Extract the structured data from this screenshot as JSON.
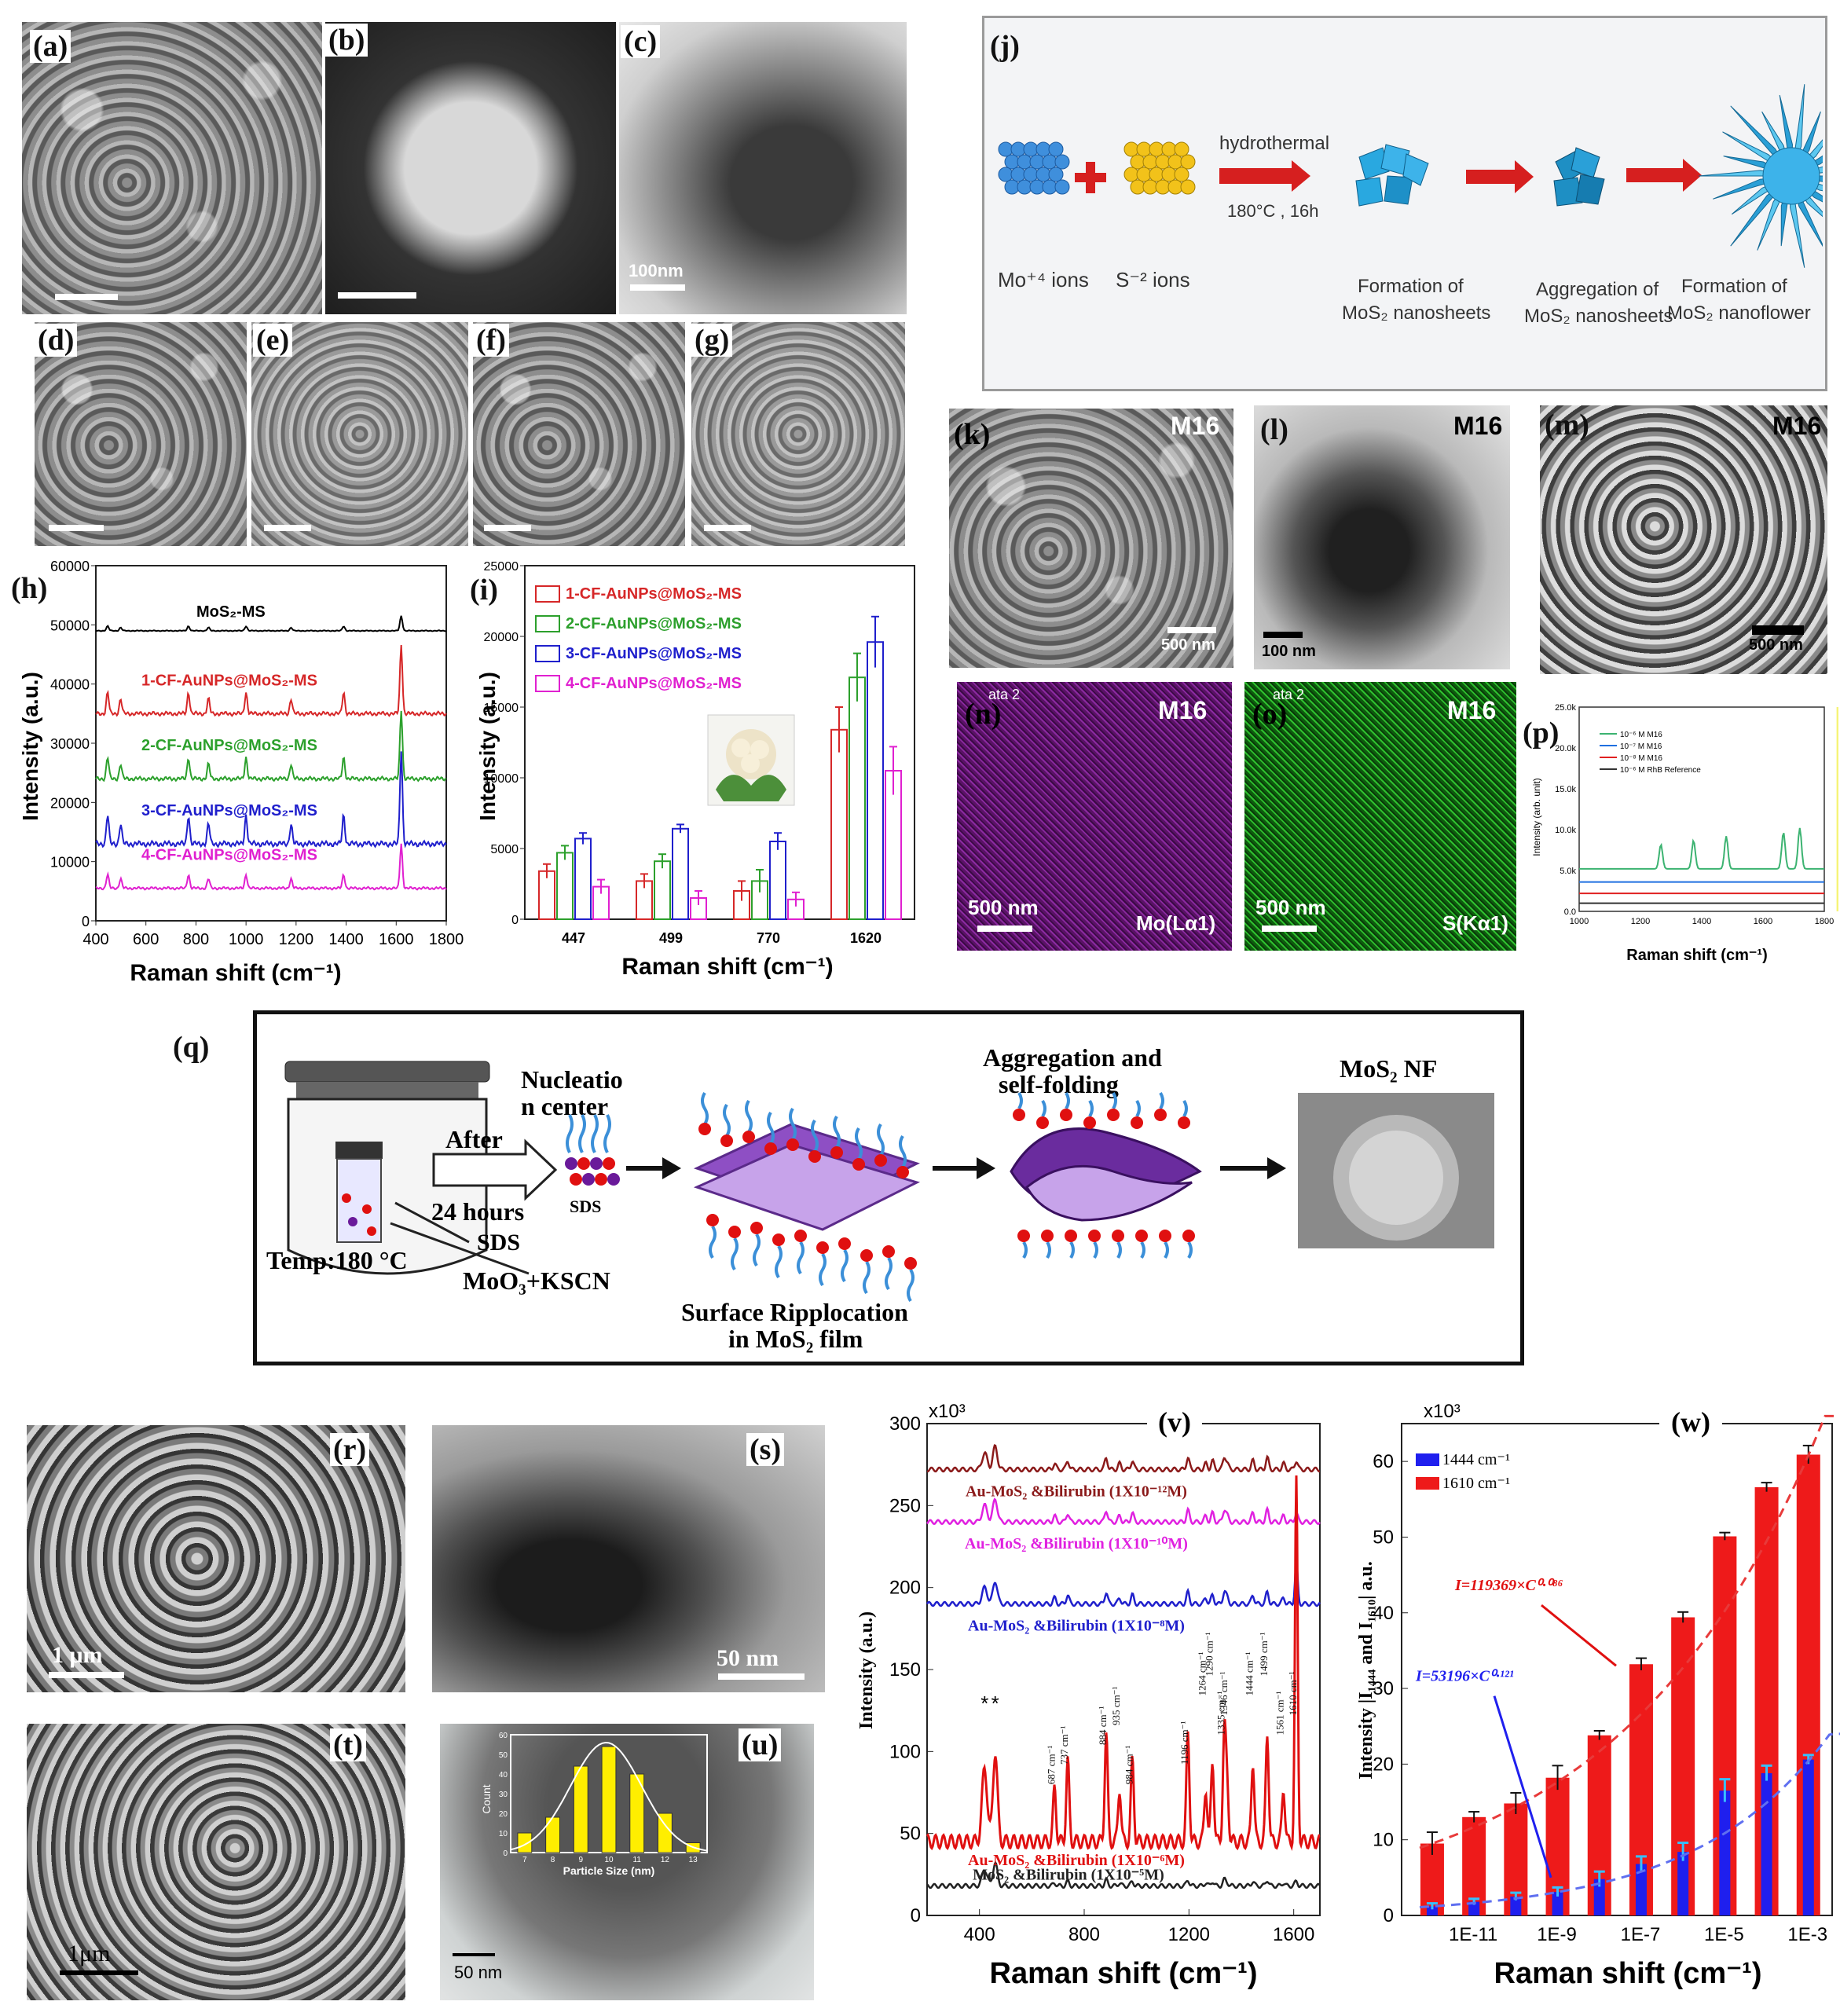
{
  "panel_labels": {
    "a": "(a)",
    "b": "(b)",
    "c": "(c)",
    "d": "(d)",
    "e": "(e)",
    "f": "(f)",
    "g": "(g)",
    "h": "(h)",
    "i": "(i)",
    "j": "(j)",
    "k": "(k)",
    "l": "(l)",
    "m": "(m)",
    "n": "(n)",
    "o": "(o)",
    "p": "(p)",
    "q": "(q)",
    "r": "(r)",
    "s": "(s)",
    "t": "(t)",
    "u": "(u)",
    "v": "(v)",
    "w": "(w)"
  },
  "micrographs": {
    "c_scale": "100nm",
    "k_tag": "M16",
    "k_scale": "500 nm",
    "l_tag": "M16",
    "l_scale": "100 nm",
    "m_tag": "M16",
    "m_scale": "500 nm",
    "n_tag": "M16",
    "n_scale": "500 nm",
    "n_element": "Mo(Lα1)",
    "n_corner": "ata 2",
    "o_tag": "M16",
    "o_scale": "500 nm",
    "o_element": "S(Kα1)",
    "o_corner": "ata 2",
    "r_scale": "1 μm",
    "s_scale": "50 nm",
    "t_scale": "1μm",
    "u_scale": "50 nm",
    "colors": {
      "n_map": "#7a1f8c",
      "o_map": "#1f8f1f"
    }
  },
  "scheme_j": {
    "hydrothermal": "hydrothermal",
    "conditions": "180°C , 16h",
    "mo_ions": "Mo⁺⁴ ions",
    "s_ions": "S⁻² ions",
    "step1": [
      "Formation of",
      "MoS₂ nanosheets"
    ],
    "step2": [
      "Aggregation of",
      "MoS₂ nanosheets"
    ],
    "step3": [
      "Formation of",
      "MoS₂ nanoflower"
    ]
  },
  "scheme_q": {
    "after": "After",
    "hours": "24 hours",
    "sds": "SDS",
    "sds2": "SDS",
    "temp": "Temp:180 °C",
    "reagents": "MoO₃+KSCN",
    "nucleation": [
      "Nucleatio",
      "n center"
    ],
    "ripplocation": [
      "Surface Ripplocation",
      "in  MoS₂ film"
    ],
    "aggregation": [
      "Aggregation and",
      "self-folding"
    ],
    "nf": "MoS₂ NF"
  },
  "chart_data": [
    {
      "id": "h",
      "type": "line",
      "xlabel": "Raman shift (cm⁻¹)",
      "ylabel": "Intensity (a.u.)",
      "xlim": [
        400,
        1800
      ],
      "ylim": [
        0,
        60000
      ],
      "xticks": [
        "400",
        "600",
        "800",
        "1000",
        "1200",
        "1400",
        "1600",
        "1800"
      ],
      "yticks": [
        "0",
        "10000",
        "20000",
        "30000",
        "40000",
        "50000",
        "60000"
      ],
      "peaks": [
        447,
        499,
        770,
        850,
        1000,
        1180,
        1390,
        1620
      ],
      "series": [
        {
          "name": "MoS₂-MS",
          "color": "#000000",
          "baseline": 49000,
          "peak_scale": 600
        },
        {
          "name": "1-CF-AuNPs@MoS₂-MS",
          "color": "#d62728",
          "baseline": 35000,
          "peak_scale": 2800
        },
        {
          "name": "2-CF-AuNPs@MoS₂-MS",
          "color": "#2ca02c",
          "baseline": 24000,
          "peak_scale": 2800
        },
        {
          "name": "3-CF-AuNPs@MoS₂-MS",
          "color": "#1f1fcc",
          "baseline": 13000,
          "peak_scale": 3800
        },
        {
          "name": "4-CF-AuNPs@MoS₂-MS",
          "color": "#e020d0",
          "baseline": 5500,
          "peak_scale": 1800
        }
      ]
    },
    {
      "id": "i",
      "type": "bar",
      "xlabel": "Raman shift (cm⁻¹)",
      "ylabel": "Intensity (a.u.)",
      "ylim": [
        0,
        25000
      ],
      "yticks": [
        "0",
        "5000",
        "10000",
        "15000",
        "20000",
        "25000"
      ],
      "categories": [
        "447",
        "499",
        "770",
        "1620"
      ],
      "series": [
        {
          "name": "1-CF-AuNPs@MoS₂-MS",
          "color": "#d62728",
          "values": [
            3400,
            2700,
            2000,
            13400
          ],
          "errors": [
            500,
            500,
            700,
            1600
          ]
        },
        {
          "name": "2-CF-AuNPs@MoS₂-MS",
          "color": "#2ca02c",
          "values": [
            4700,
            4100,
            2700,
            17100
          ],
          "errors": [
            500,
            500,
            800,
            1700
          ]
        },
        {
          "name": "3-CF-AuNPs@MoS₂-MS",
          "color": "#1f1fcc",
          "values": [
            5700,
            6400,
            5500,
            19600
          ],
          "errors": [
            400,
            300,
            600,
            1800
          ]
        },
        {
          "name": "4-CF-AuNPs@MoS₂-MS",
          "color": "#e020d0",
          "values": [
            2300,
            1500,
            1400,
            10500
          ],
          "errors": [
            500,
            500,
            500,
            1700
          ]
        }
      ]
    },
    {
      "id": "p",
      "type": "line",
      "xlabel": "Raman shift (cm⁻¹)",
      "ylabel": "Intensity (arb. unit)",
      "xlim": [
        1000,
        1600
      ],
      "ylim": [
        0,
        25000
      ],
      "xticks": [
        "1000",
        "1200",
        "1400",
        "1600",
        "1800"
      ],
      "yticks": [
        "0.0",
        "5.0k",
        "10.0k",
        "15.0k",
        "20.0k",
        "25.0k"
      ],
      "series": [
        {
          "name": "10⁻⁶ M M16",
          "color": "#3cb371",
          "baseline": 5200
        },
        {
          "name": "10⁻⁷ M M16",
          "color": "#1f6fe0",
          "baseline": 3600
        },
        {
          "name": "10⁻⁸ M M16",
          "color": "#e02020",
          "baseline": 2200
        },
        {
          "name": "10⁻⁶ M RhB Reference",
          "color": "#333333",
          "baseline": 1000
        }
      ],
      "highlight": [
        1630,
        1660
      ]
    },
    {
      "id": "u",
      "type": "bar",
      "xlabel": "Particle Size (nm)",
      "ylabel": "Count",
      "categories": [
        "7",
        "8",
        "9",
        "10",
        "11",
        "12",
        "13"
      ],
      "values": [
        10,
        18,
        44,
        54,
        40,
        20,
        5
      ],
      "ylim": [
        0,
        60
      ],
      "yticks": [
        "0",
        "10",
        "20",
        "30",
        "40",
        "50",
        "60"
      ],
      "color": "#ffee00"
    },
    {
      "id": "v",
      "type": "line",
      "xlabel": "Raman shift (cm⁻¹)",
      "ylabel": "Intensity (a.u.)",
      "scale_note": "x10³",
      "xlim": [
        200,
        1700
      ],
      "ylim": [
        0,
        300
      ],
      "xticks": [
        "400",
        "800",
        "1200",
        "1600"
      ],
      "yticks": [
        "0",
        "50",
        "100",
        "150",
        "200",
        "250",
        "300"
      ],
      "series": [
        {
          "name": "Au-MoS₂ &Bilirubin (1X10⁻¹²M)",
          "color": "#8b1a1a",
          "baseline": 272
        },
        {
          "name": "Au-MoS₂ &Bilirubin (1X10⁻¹⁰M)",
          "color": "#e020e0",
          "baseline": 240
        },
        {
          "name": "Au-MoS₂ &Bilirubin (1X10⁻⁸M)",
          "color": "#1f1fcc",
          "baseline": 190
        },
        {
          "name": "Au-MoS₂ &Bilirubin (1X10⁻⁶M)",
          "color": "#e01010",
          "baseline": 45
        },
        {
          "name": "MoS₂ &Bilirubin (1X10⁻⁵M)",
          "color": "#222222",
          "baseline": 18
        }
      ],
      "peak_labels": [
        "687 cm⁻¹",
        "737 cm⁻¹",
        "884 cm⁻¹",
        "935 cm⁻¹",
        "984 cm⁻¹",
        "1196 cm⁻¹",
        "1264 cm⁻¹",
        "1290 cm⁻¹",
        "1335 cm⁻¹",
        "1346 cm⁻¹",
        "1444 cm⁻¹",
        "1499 cm⁻¹",
        "1561 cm⁻¹",
        "1610 cm⁻¹"
      ],
      "peak_label_x": [
        687,
        737,
        884,
        935,
        984,
        1196,
        1264,
        1290,
        1335,
        1346,
        1444,
        1499,
        1561,
        1610
      ],
      "asterisk": "*"
    },
    {
      "id": "w",
      "type": "bar",
      "xlabel": "Raman shift (cm⁻¹)",
      "ylabel": "Intensity |I₁₄₄₄ and I₁₆₁₀| a.u.",
      "scale_note": "x10³",
      "ylim": [
        0,
        65
      ],
      "yticks": [
        "0",
        "10",
        "20",
        "30",
        "40",
        "50",
        "60"
      ],
      "xticks": [
        "1E-11",
        "1E-9",
        "1E-7",
        "1E-5",
        "1E-3"
      ],
      "series": [
        {
          "name": "1444 cm⁻¹",
          "color": "#1f1fee",
          "values": [
            1.2,
            1.8,
            2.5,
            3.1,
            4.8,
            6.8,
            8.4,
            16.5,
            18.8,
            20.6
          ],
          "errors": [
            0.4,
            0.4,
            0.5,
            0.6,
            1.0,
            1.0,
            1.2,
            1.5,
            1.0,
            0.6
          ]
        },
        {
          "name": "1610 cm⁻¹",
          "color": "#ee1a1a",
          "values": [
            9.5,
            13.0,
            14.8,
            18.2,
            23.8,
            33.2,
            39.4,
            50.1,
            56.6,
            60.9
          ],
          "errors": [
            1.5,
            0.7,
            1.4,
            1.6,
            0.6,
            0.8,
            0.7,
            0.5,
            0.6,
            1.2
          ]
        }
      ],
      "fit_red": "I=119369×C⁰·⁰⁸⁶",
      "fit_blue": "I=53196×C⁰·¹²¹"
    }
  ]
}
